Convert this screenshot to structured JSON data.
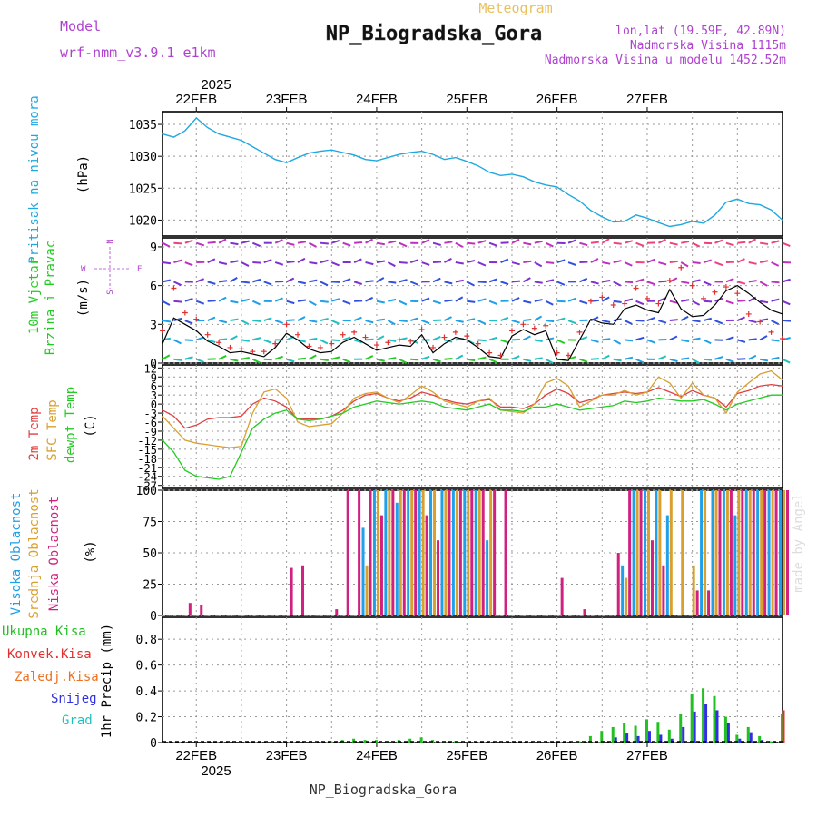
{
  "header": {
    "model_label": "Model",
    "model_name": "wrf-nmm_v3.9.1 e1km",
    "subtitle": "Meteogram",
    "title": "NP_Biogradska_Gora",
    "lonlat": "lon,lat (19.59E, 42.89N)",
    "elevation": "Nadmorska Visina 1115m",
    "model_elevation": "Nadmorska Visina u modelu 1452.52m",
    "footer_title": "NP_Biogradska_Gora",
    "credit": "made by Angel"
  },
  "colors": {
    "pressure": "#1fa8e0",
    "wind_label": "#22cc22",
    "speed_line": "#000000",
    "gust": "#e03030",
    "temp2m": "#e04040",
    "sfc_temp": "#d9a030",
    "dewpt": "#22cc22",
    "high_cloud": "#1fa0e8",
    "mid_cloud": "#d9a030",
    "low_cloud": "#d02080",
    "total_precip": "#22c022",
    "conv_precip": "#e03030",
    "freezing": "#f07020",
    "snow": "#3030e0",
    "hail": "#20c0c0",
    "meta_purple": "#b040d0"
  },
  "time_axis": {
    "year": "2025",
    "days": [
      "22FEB",
      "23FEB",
      "24FEB",
      "25FEB",
      "26FEB",
      "27FEB"
    ],
    "range_hours": [
      -9,
      156
    ]
  },
  "panels": {
    "pressure": {
      "label": "Pritisak na nivou mora",
      "unit": "(hPa)",
      "ticks": [
        "1035",
        "1030",
        "1025",
        "1020"
      ]
    },
    "wind": {
      "label1": "10m Vjetar",
      "label2": "Brzina i Pravac",
      "unit": "(m/s)",
      "ticks": [
        "9",
        "6",
        "3",
        "0"
      ],
      "compass": {
        "n": "N",
        "s": "S",
        "w": "W",
        "e": "E"
      }
    },
    "temp": {
      "label_2m": "2m Temp",
      "label_sfc": "SFC Temp",
      "label_dew": "dewpt Temp",
      "unit": "(C)",
      "ticks": [
        "12",
        "9",
        "6",
        "3",
        "0",
        "-3",
        "-6",
        "-9",
        "-12",
        "-15",
        "-18",
        "-21",
        "-24",
        "-27"
      ]
    },
    "cloud": {
      "label_high": "Visoka Oblacnost",
      "label_mid": "Srednja Oblacnost",
      "label_low": "Niska Oblacnost",
      "unit": "(%)",
      "ticks": [
        "100",
        "75",
        "50",
        "25",
        "0"
      ]
    },
    "precip": {
      "label_total": "Ukupna Kisa",
      "label_conv": "Konvek.Kisa",
      "label_frz": "Zaledj.Kisa",
      "label_snow": "Snijeg",
      "label_hail": "Grad",
      "unit": "1hr Precip (mm)",
      "ticks": [
        "0.8",
        "0.6",
        "0.4",
        "0.2",
        "0"
      ]
    }
  },
  "chart_data": [
    {
      "type": "line",
      "title": "Pritisak na nivou mora",
      "ylabel": "(hPa)",
      "ylim": [
        1017.5,
        1037
      ],
      "x_hours": [
        -9,
        -6,
        -3,
        0,
        3,
        6,
        9,
        12,
        15,
        18,
        21,
        24,
        27,
        30,
        33,
        36,
        39,
        42,
        45,
        48,
        51,
        54,
        57,
        60,
        63,
        66,
        69,
        72,
        75,
        78,
        81,
        84,
        87,
        90,
        93,
        96,
        99,
        102,
        105,
        108,
        111,
        114,
        117,
        120,
        123,
        126,
        129,
        132,
        135,
        138,
        141,
        144,
        147,
        150,
        153,
        156
      ],
      "series": [
        {
          "name": "Pritisak na nivou mora",
          "values": [
            1033.5,
            1033,
            1034,
            1036,
            1034.5,
            1033.5,
            1033,
            1032.5,
            1031.5,
            1030.5,
            1029.5,
            1029,
            1029.8,
            1030.5,
            1030.8,
            1031,
            1030.6,
            1030.2,
            1029.5,
            1029.3,
            1029.8,
            1030.3,
            1030.6,
            1030.8,
            1030.3,
            1029.5,
            1029.8,
            1029.2,
            1028.5,
            1027.5,
            1027,
            1027.2,
            1026.8,
            1026,
            1025.5,
            1025.2,
            1024,
            1023,
            1021.5,
            1020.5,
            1019.7,
            1019.8,
            1020.8,
            1020.3,
            1019.6,
            1019,
            1019.3,
            1019.8,
            1019.5,
            1020.8,
            1022.8,
            1023.3,
            1022.6,
            1022.4,
            1021.6,
            1020
          ]
        }
      ]
    },
    {
      "type": "line",
      "title": "10m Vjetar Brzina i Pravac",
      "ylabel": "(m/s)",
      "ylim": [
        0,
        9.7
      ],
      "x_hours": [
        -9,
        -6,
        -3,
        0,
        3,
        6,
        9,
        12,
        15,
        18,
        21,
        24,
        27,
        30,
        33,
        36,
        39,
        42,
        45,
        48,
        51,
        54,
        57,
        60,
        63,
        66,
        69,
        72,
        75,
        78,
        81,
        84,
        87,
        90,
        93,
        96,
        99,
        102,
        105,
        108,
        111,
        114,
        117,
        120,
        123,
        126,
        129,
        132,
        135,
        138,
        141,
        144,
        147,
        150,
        153,
        156
      ],
      "series": [
        {
          "name": "Brzina",
          "values": [
            1.5,
            3.5,
            3,
            2.5,
            1.7,
            1.3,
            0.8,
            0.9,
            0.7,
            0.5,
            1.2,
            2.3,
            1.8,
            1.1,
            0.8,
            0.9,
            1.6,
            2,
            1.5,
            1,
            1.2,
            1.4,
            1.3,
            2.2,
            0.8,
            1.5,
            2,
            1.8,
            1.2,
            0.5,
            0.4,
            2.1,
            2.6,
            2.2,
            2.5,
            0.3,
            0.2,
            1.8,
            3.4,
            3.1,
            3,
            4.2,
            4.5,
            4.1,
            3.9,
            5.7,
            4.2,
            3.6,
            3.7,
            4.5,
            5.6,
            6,
            5.4,
            4.7,
            4.1,
            3.8
          ]
        },
        {
          "name": "Udari",
          "values": [
            2.5,
            5.8,
            3.9,
            3.4,
            2.2,
            1.6,
            1.2,
            1.1,
            0.9,
            0.9,
            1.5,
            3,
            2.2,
            1.3,
            1.2,
            1.5,
            2.2,
            2.4,
            2,
            1.4,
            1.6,
            1.8,
            1.7,
            2.6,
            1.2,
            2,
            2.4,
            2.1,
            1.5,
            0.8,
            0.6,
            2.5,
            3,
            2.7,
            2.9,
            0.8,
            0.6,
            2.4,
            4.8,
            5.1,
            4.5,
            4.6,
            5.8,
            5,
            4.6,
            6.4,
            7.4,
            6,
            5,
            5.5,
            5.9,
            5.4,
            3.8,
            3.2,
            2.4,
            1.9
          ]
        }
      ]
    },
    {
      "type": "line",
      "title": "2m Temp / SFC Temp / dewpt Temp",
      "ylabel": "(C)",
      "ylim": [
        -28,
        13
      ],
      "x_hours": [
        -9,
        -6,
        -3,
        0,
        3,
        6,
        9,
        12,
        15,
        18,
        21,
        24,
        27,
        30,
        33,
        36,
        39,
        42,
        45,
        48,
        51,
        54,
        57,
        60,
        63,
        66,
        69,
        72,
        75,
        78,
        81,
        84,
        87,
        90,
        93,
        96,
        99,
        102,
        105,
        108,
        111,
        114,
        117,
        120,
        123,
        126,
        129,
        132,
        135,
        138,
        141,
        144,
        147,
        150,
        153,
        156
      ],
      "series": [
        {
          "name": "2m Temp",
          "values": [
            -2,
            -4,
            -8,
            -7,
            -5,
            -4.5,
            -4.5,
            -4,
            0,
            2,
            1,
            -1,
            -5,
            -5,
            -5,
            -4,
            -2,
            1,
            3,
            3.5,
            2,
            1,
            2,
            4,
            3,
            1.5,
            0.5,
            0,
            1,
            1.5,
            -1,
            -1,
            -1.5,
            0,
            3,
            5,
            3.5,
            0.5,
            1.5,
            3,
            3.5,
            4,
            3.5,
            4,
            5.5,
            4,
            2.5,
            4.5,
            3,
            2,
            -1,
            3.5,
            4.5,
            6,
            6.5,
            6
          ]
        },
        {
          "name": "SFC Temp",
          "values": [
            -4,
            -8,
            -12,
            -13,
            -13.5,
            -14,
            -14.5,
            -14,
            -3,
            4,
            5,
            2,
            -6,
            -7.5,
            -7,
            -6.5,
            -3,
            2,
            3.5,
            4,
            2,
            0.5,
            3,
            6,
            4,
            1,
            0,
            -1,
            1,
            2,
            -2,
            -2.5,
            -3,
            0,
            7,
            8.5,
            6,
            -1,
            1,
            3,
            3,
            4.5,
            3,
            4,
            9,
            7,
            2,
            7,
            3,
            2,
            -3,
            4,
            7,
            10,
            11,
            8
          ]
        },
        {
          "name": "dewpt Temp",
          "values": [
            -12,
            -16,
            -22,
            -24,
            -24.5,
            -25,
            -24,
            -16,
            -8,
            -5,
            -3,
            -2,
            -5,
            -5.5,
            -5,
            -4,
            -3,
            -1,
            0,
            1,
            0.5,
            0,
            0.5,
            1,
            0.5,
            -1,
            -1.5,
            -2,
            -1,
            0,
            -2,
            -2,
            -2.5,
            -1,
            -1,
            0,
            -1,
            -2,
            -1.5,
            -1,
            -0.5,
            1,
            0.5,
            1,
            2,
            1.5,
            1,
            1,
            1.5,
            0,
            -2,
            0,
            1,
            2,
            3,
            3
          ]
        }
      ]
    },
    {
      "type": "bar",
      "title": "Visoka / Srednja / Niska Oblacnost",
      "ylabel": "(%)",
      "ylim": [
        0,
        100
      ],
      "x_hours": [
        -9,
        -6,
        -3,
        0,
        3,
        6,
        9,
        12,
        15,
        18,
        21,
        24,
        27,
        30,
        33,
        36,
        39,
        42,
        45,
        48,
        51,
        54,
        57,
        60,
        63,
        66,
        69,
        72,
        75,
        78,
        81,
        84,
        87,
        90,
        93,
        96,
        99,
        102,
        105,
        108,
        111,
        114,
        117,
        120,
        123,
        126,
        129,
        132,
        135,
        138,
        141,
        144,
        147,
        150,
        153,
        156
      ],
      "series": [
        {
          "name": "Visoka Oblacnost",
          "values": [
            0,
            0,
            0,
            0,
            0,
            0,
            0,
            0,
            0,
            0,
            0,
            0,
            0,
            0,
            0,
            0,
            0,
            0,
            70,
            100,
            100,
            90,
            100,
            100,
            100,
            100,
            100,
            100,
            100,
            60,
            0,
            0,
            0,
            0,
            0,
            0,
            0,
            0,
            0,
            0,
            0,
            40,
            100,
            100,
            100,
            80,
            0,
            0,
            100,
            100,
            100,
            80,
            100,
            100,
            100,
            100
          ]
        },
        {
          "name": "Srednja Oblacnost",
          "values": [
            0,
            0,
            0,
            0,
            0,
            0,
            0,
            0,
            0,
            0,
            0,
            0,
            0,
            0,
            0,
            0,
            0,
            0,
            40,
            100,
            100,
            100,
            100,
            100,
            100,
            100,
            100,
            100,
            100,
            100,
            0,
            0,
            0,
            0,
            0,
            0,
            0,
            0,
            0,
            0,
            0,
            30,
            100,
            100,
            100,
            100,
            100,
            40,
            100,
            100,
            100,
            100,
            100,
            100,
            100,
            100
          ]
        },
        {
          "name": "Niska Oblacnost",
          "values": [
            0,
            0,
            10,
            8,
            0,
            0,
            0,
            0,
            0,
            0,
            0,
            38,
            40,
            0,
            0,
            5,
            100,
            100,
            100,
            80,
            100,
            100,
            100,
            80,
            60,
            100,
            100,
            100,
            100,
            100,
            100,
            0,
            0,
            0,
            0,
            30,
            0,
            5,
            0,
            0,
            50,
            100,
            100,
            60,
            40,
            0,
            0,
            20,
            20,
            100,
            100,
            100,
            100,
            100,
            100,
            100
          ]
        }
      ]
    },
    {
      "type": "bar",
      "title": "1hr Precip",
      "ylabel": "1hr Precip (mm)",
      "ylim": [
        0,
        0.97
      ],
      "x_hours": [
        -9,
        -6,
        -3,
        0,
        3,
        6,
        9,
        12,
        15,
        18,
        21,
        24,
        27,
        30,
        33,
        36,
        39,
        42,
        45,
        48,
        51,
        54,
        57,
        60,
        63,
        66,
        69,
        72,
        75,
        78,
        81,
        84,
        87,
        90,
        93,
        96,
        99,
        102,
        105,
        108,
        111,
        114,
        117,
        120,
        123,
        126,
        129,
        132,
        135,
        138,
        141,
        144,
        147,
        150,
        153,
        156
      ],
      "series": [
        {
          "name": "Ukupna Kisa",
          "values": [
            0,
            0,
            0,
            0,
            0,
            0,
            0,
            0,
            0,
            0,
            0,
            0,
            0,
            0,
            0,
            0.01,
            0.02,
            0.03,
            0.02,
            0.02,
            0.01,
            0.02,
            0.03,
            0.04,
            0.02,
            0.01,
            0.01,
            0,
            0,
            0,
            0,
            0,
            0,
            0,
            0,
            0,
            0,
            0.01,
            0.05,
            0.09,
            0.12,
            0.15,
            0.13,
            0.18,
            0.16,
            0.1,
            0.22,
            0.38,
            0.42,
            0.36,
            0.2,
            0.06,
            0.12,
            0.05,
            0.01,
            0.22
          ]
        },
        {
          "name": "Konvek.Kisa",
          "values": [
            0,
            0,
            0,
            0,
            0,
            0,
            0,
            0,
            0,
            0,
            0,
            0,
            0,
            0,
            0,
            0,
            0,
            0,
            0,
            0,
            0,
            0,
            0,
            0,
            0,
            0,
            0,
            0,
            0,
            0,
            0,
            0,
            0,
            0,
            0,
            0,
            0,
            0,
            0,
            0,
            0,
            0,
            0,
            0,
            0,
            0,
            0,
            0,
            0,
            0,
            0,
            0,
            0,
            0,
            0,
            0.25
          ]
        },
        {
          "name": "Snijeg",
          "values": [
            0,
            0,
            0,
            0,
            0,
            0,
            0,
            0,
            0,
            0,
            0,
            0,
            0,
            0,
            0,
            0,
            0,
            0,
            0,
            0,
            0,
            0,
            0,
            0,
            0,
            0,
            0,
            0,
            0,
            0,
            0,
            0,
            0,
            0,
            0,
            0,
            0,
            0,
            0,
            0,
            0.04,
            0.07,
            0.05,
            0.09,
            0.06,
            0.03,
            0.12,
            0.24,
            0.3,
            0.25,
            0.15,
            0.03,
            0.08,
            0.02,
            0,
            0
          ]
        }
      ]
    }
  ]
}
